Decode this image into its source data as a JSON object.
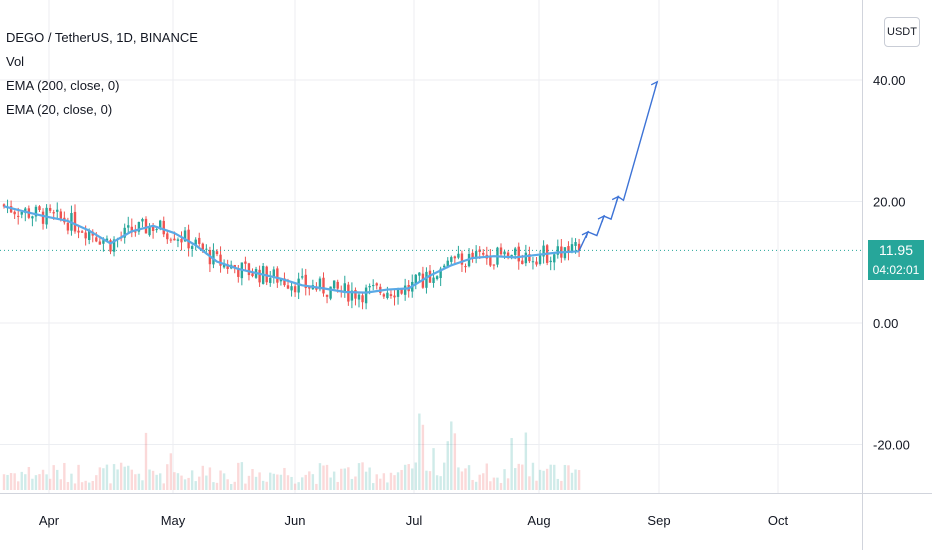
{
  "header": {
    "title": "DEGO / TetherUS, 1D, BINANCE",
    "indicators": [
      "Vol",
      "EMA (200, close, 0)",
      "EMA (20, close, 0)"
    ],
    "currency_button": "USDT"
  },
  "price_scale": {
    "current_price": "11.95",
    "countdown": "04:02:01"
  },
  "colors": {
    "up": "#26a69a",
    "down": "#ef5350",
    "ema": "#5aa9e6",
    "drawing": "#3d73d6",
    "grid": "#eceef2",
    "price_line": "#26a69a"
  },
  "chart_data": {
    "type": "candlestick",
    "symbol": "DEGO / TetherUS",
    "interval": "1D",
    "exchange": "BINANCE",
    "y_axis": {
      "ticks": [
        40,
        20,
        0,
        -20
      ],
      "tick_labels": [
        "40.00",
        "20.00",
        "0.00",
        "-20.00"
      ],
      "range": [
        -26,
        50
      ]
    },
    "x_axis": {
      "tick_labels": [
        "Apr",
        "May",
        "Jun",
        "Jul",
        "Aug",
        "Sep",
        "Oct"
      ]
    },
    "series": [
      {
        "name": "EMA (20, close, 0)",
        "x": [
          0,
          6,
          12,
          18,
          24,
          30,
          36,
          42,
          48,
          54,
          60,
          66,
          72,
          78,
          84,
          90,
          96,
          102,
          108,
          114,
          120,
          126,
          132,
          138,
          144,
          150,
          156,
          162
        ],
        "values": [
          19.2,
          18.3,
          17.5,
          16.8,
          15.2,
          13.1,
          15.1,
          16.0,
          14.8,
          12.8,
          10.1,
          8.9,
          8.1,
          7.3,
          6.2,
          5.7,
          5.1,
          5.0,
          5.5,
          5.7,
          7.8,
          9.5,
          10.7,
          11.0,
          10.8,
          11.2,
          11.6,
          11.8
        ]
      }
    ],
    "drawing": {
      "type": "projection-path",
      "points": [
        [
          162,
          11.9
        ],
        [
          164.5,
          15.0
        ],
        [
          167,
          14.4
        ],
        [
          169,
          17.6
        ],
        [
          171,
          17.1
        ],
        [
          173,
          20.8
        ],
        [
          174.5,
          20.2
        ],
        [
          184,
          39.7
        ]
      ]
    },
    "last_price": 11.95,
    "seed": 7
  }
}
